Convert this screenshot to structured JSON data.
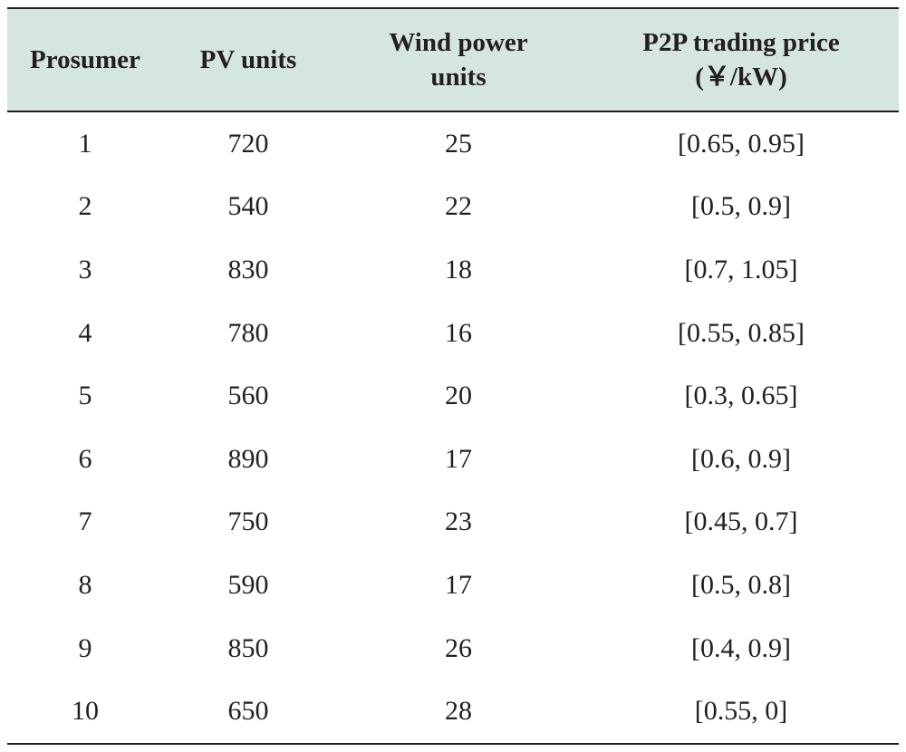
{
  "table": {
    "headers": [
      {
        "key": "prosumer",
        "lines": [
          "Prosumer"
        ]
      },
      {
        "key": "pv",
        "lines": [
          "PV units"
        ]
      },
      {
        "key": "wind",
        "lines": [
          "Wind power",
          "units"
        ]
      },
      {
        "key": "price",
        "lines": [
          "P2P trading price",
          "(￥/kW)"
        ]
      }
    ],
    "rows": [
      [
        "1",
        "720",
        "25",
        "[0.65, 0.95]"
      ],
      [
        "2",
        "540",
        "22",
        "[0.5, 0.9]"
      ],
      [
        "3",
        "830",
        "18",
        "[0.7, 1.05]"
      ],
      [
        "4",
        "780",
        "16",
        "[0.55, 0.85]"
      ],
      [
        "5",
        "560",
        "20",
        "[0.3, 0.65]"
      ],
      [
        "6",
        "890",
        "17",
        "[0.6, 0.9]"
      ],
      [
        "7",
        "750",
        "23",
        "[0.45, 0.7]"
      ],
      [
        "8",
        "590",
        "17",
        "[0.5, 0.8]"
      ],
      [
        "9",
        "850",
        "26",
        "[0.4, 0.9]"
      ],
      [
        "10",
        "650",
        "28",
        "[0.55, 0]"
      ]
    ]
  }
}
